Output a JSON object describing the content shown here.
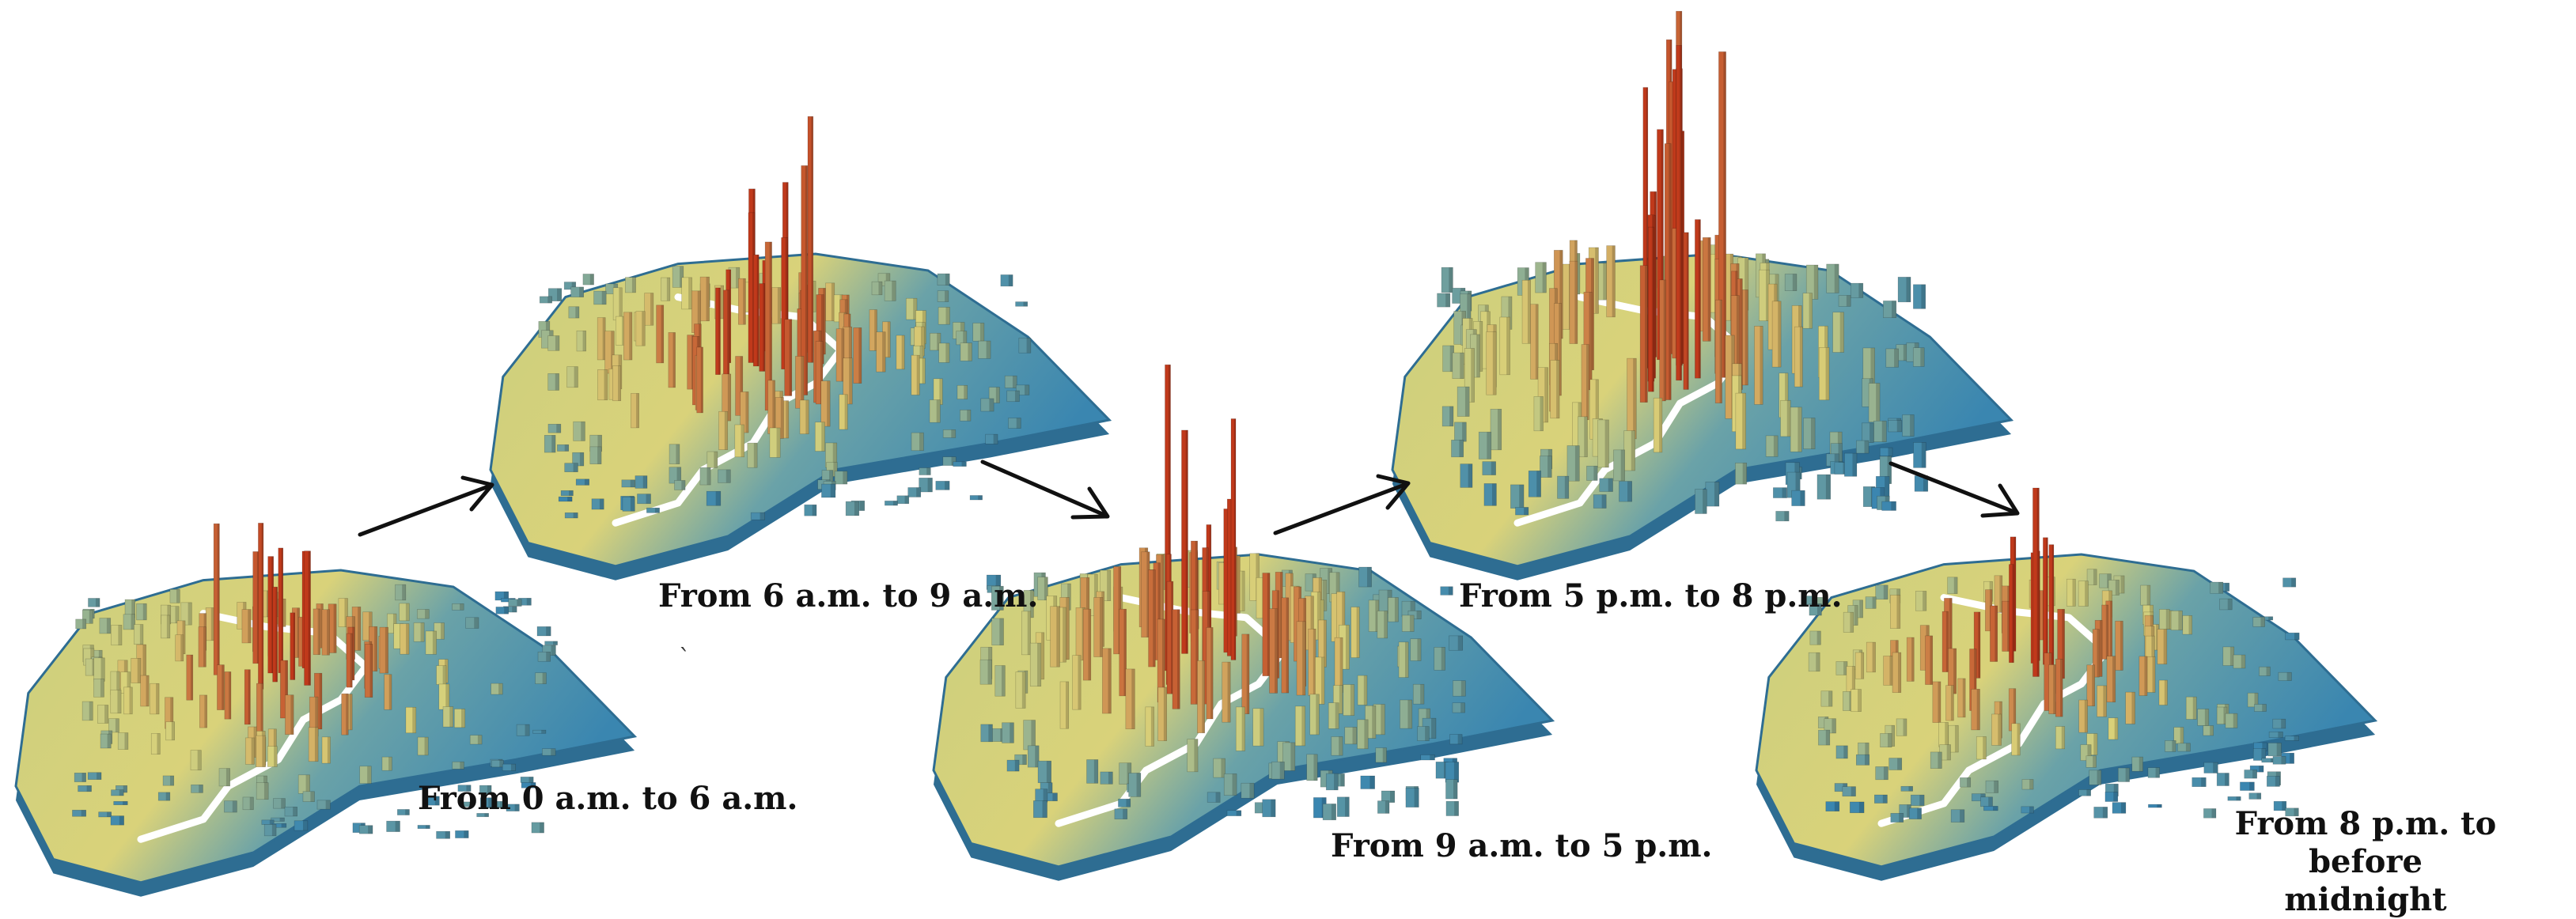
{
  "figure": {
    "panels": [
      {
        "id": "p1",
        "caption": "From 0 a.m. to 6 a.m.",
        "intensity": 0.55
      },
      {
        "id": "p2",
        "caption": "From 6 a.m. to 9 a.m.",
        "intensity": 0.7
      },
      {
        "id": "p3",
        "caption": "From 9 a.m. to 5 p.m.",
        "intensity": 1.0
      },
      {
        "id": "p4",
        "caption": "From 5 p.m. to 8 p.m.",
        "intensity": 1.25
      },
      {
        "id": "p5",
        "caption_line1": "From 8 p.m. to before",
        "caption_line2": "midnight",
        "intensity": 0.6
      }
    ],
    "colors": {
      "low": "#3a86b0",
      "mid": "#d9d27a",
      "high": "#c0391b",
      "river": "#ffffff",
      "edge": "#2e6d92"
    }
  }
}
